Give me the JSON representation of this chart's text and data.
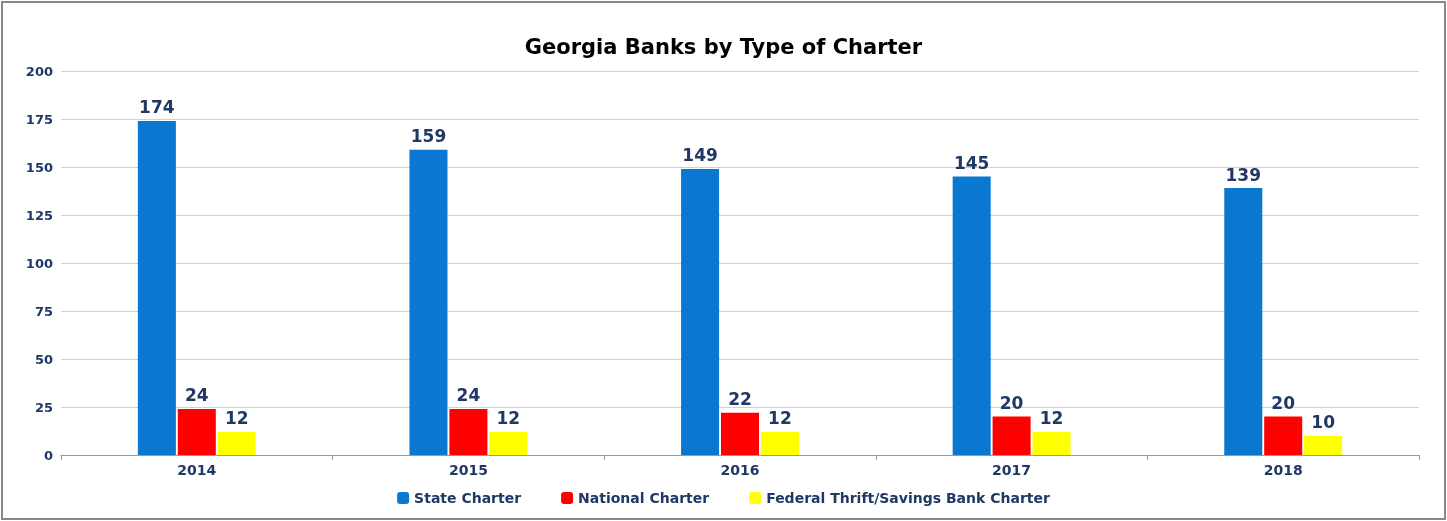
{
  "chart_data": {
    "type": "bar",
    "title": "Georgia Banks by Type of Charter",
    "categories": [
      "2014",
      "2015",
      "2016",
      "2017",
      "2018"
    ],
    "series": [
      {
        "name": "State Charter",
        "color": "#0a78d0",
        "values": [
          174,
          159,
          149,
          145,
          139
        ]
      },
      {
        "name": "National Charter",
        "color": "#ff0000",
        "values": [
          24,
          24,
          22,
          20,
          20
        ]
      },
      {
        "name": "Federal Thrift/Savings Bank Charter",
        "color": "#ffff00",
        "values": [
          12,
          12,
          12,
          12,
          10
        ]
      }
    ],
    "ylim": [
      0,
      200
    ],
    "yticks": [
      0,
      25,
      50,
      75,
      100,
      125,
      150,
      175,
      200
    ],
    "grid": "y",
    "legend": "bottom",
    "data_labels": true
  }
}
